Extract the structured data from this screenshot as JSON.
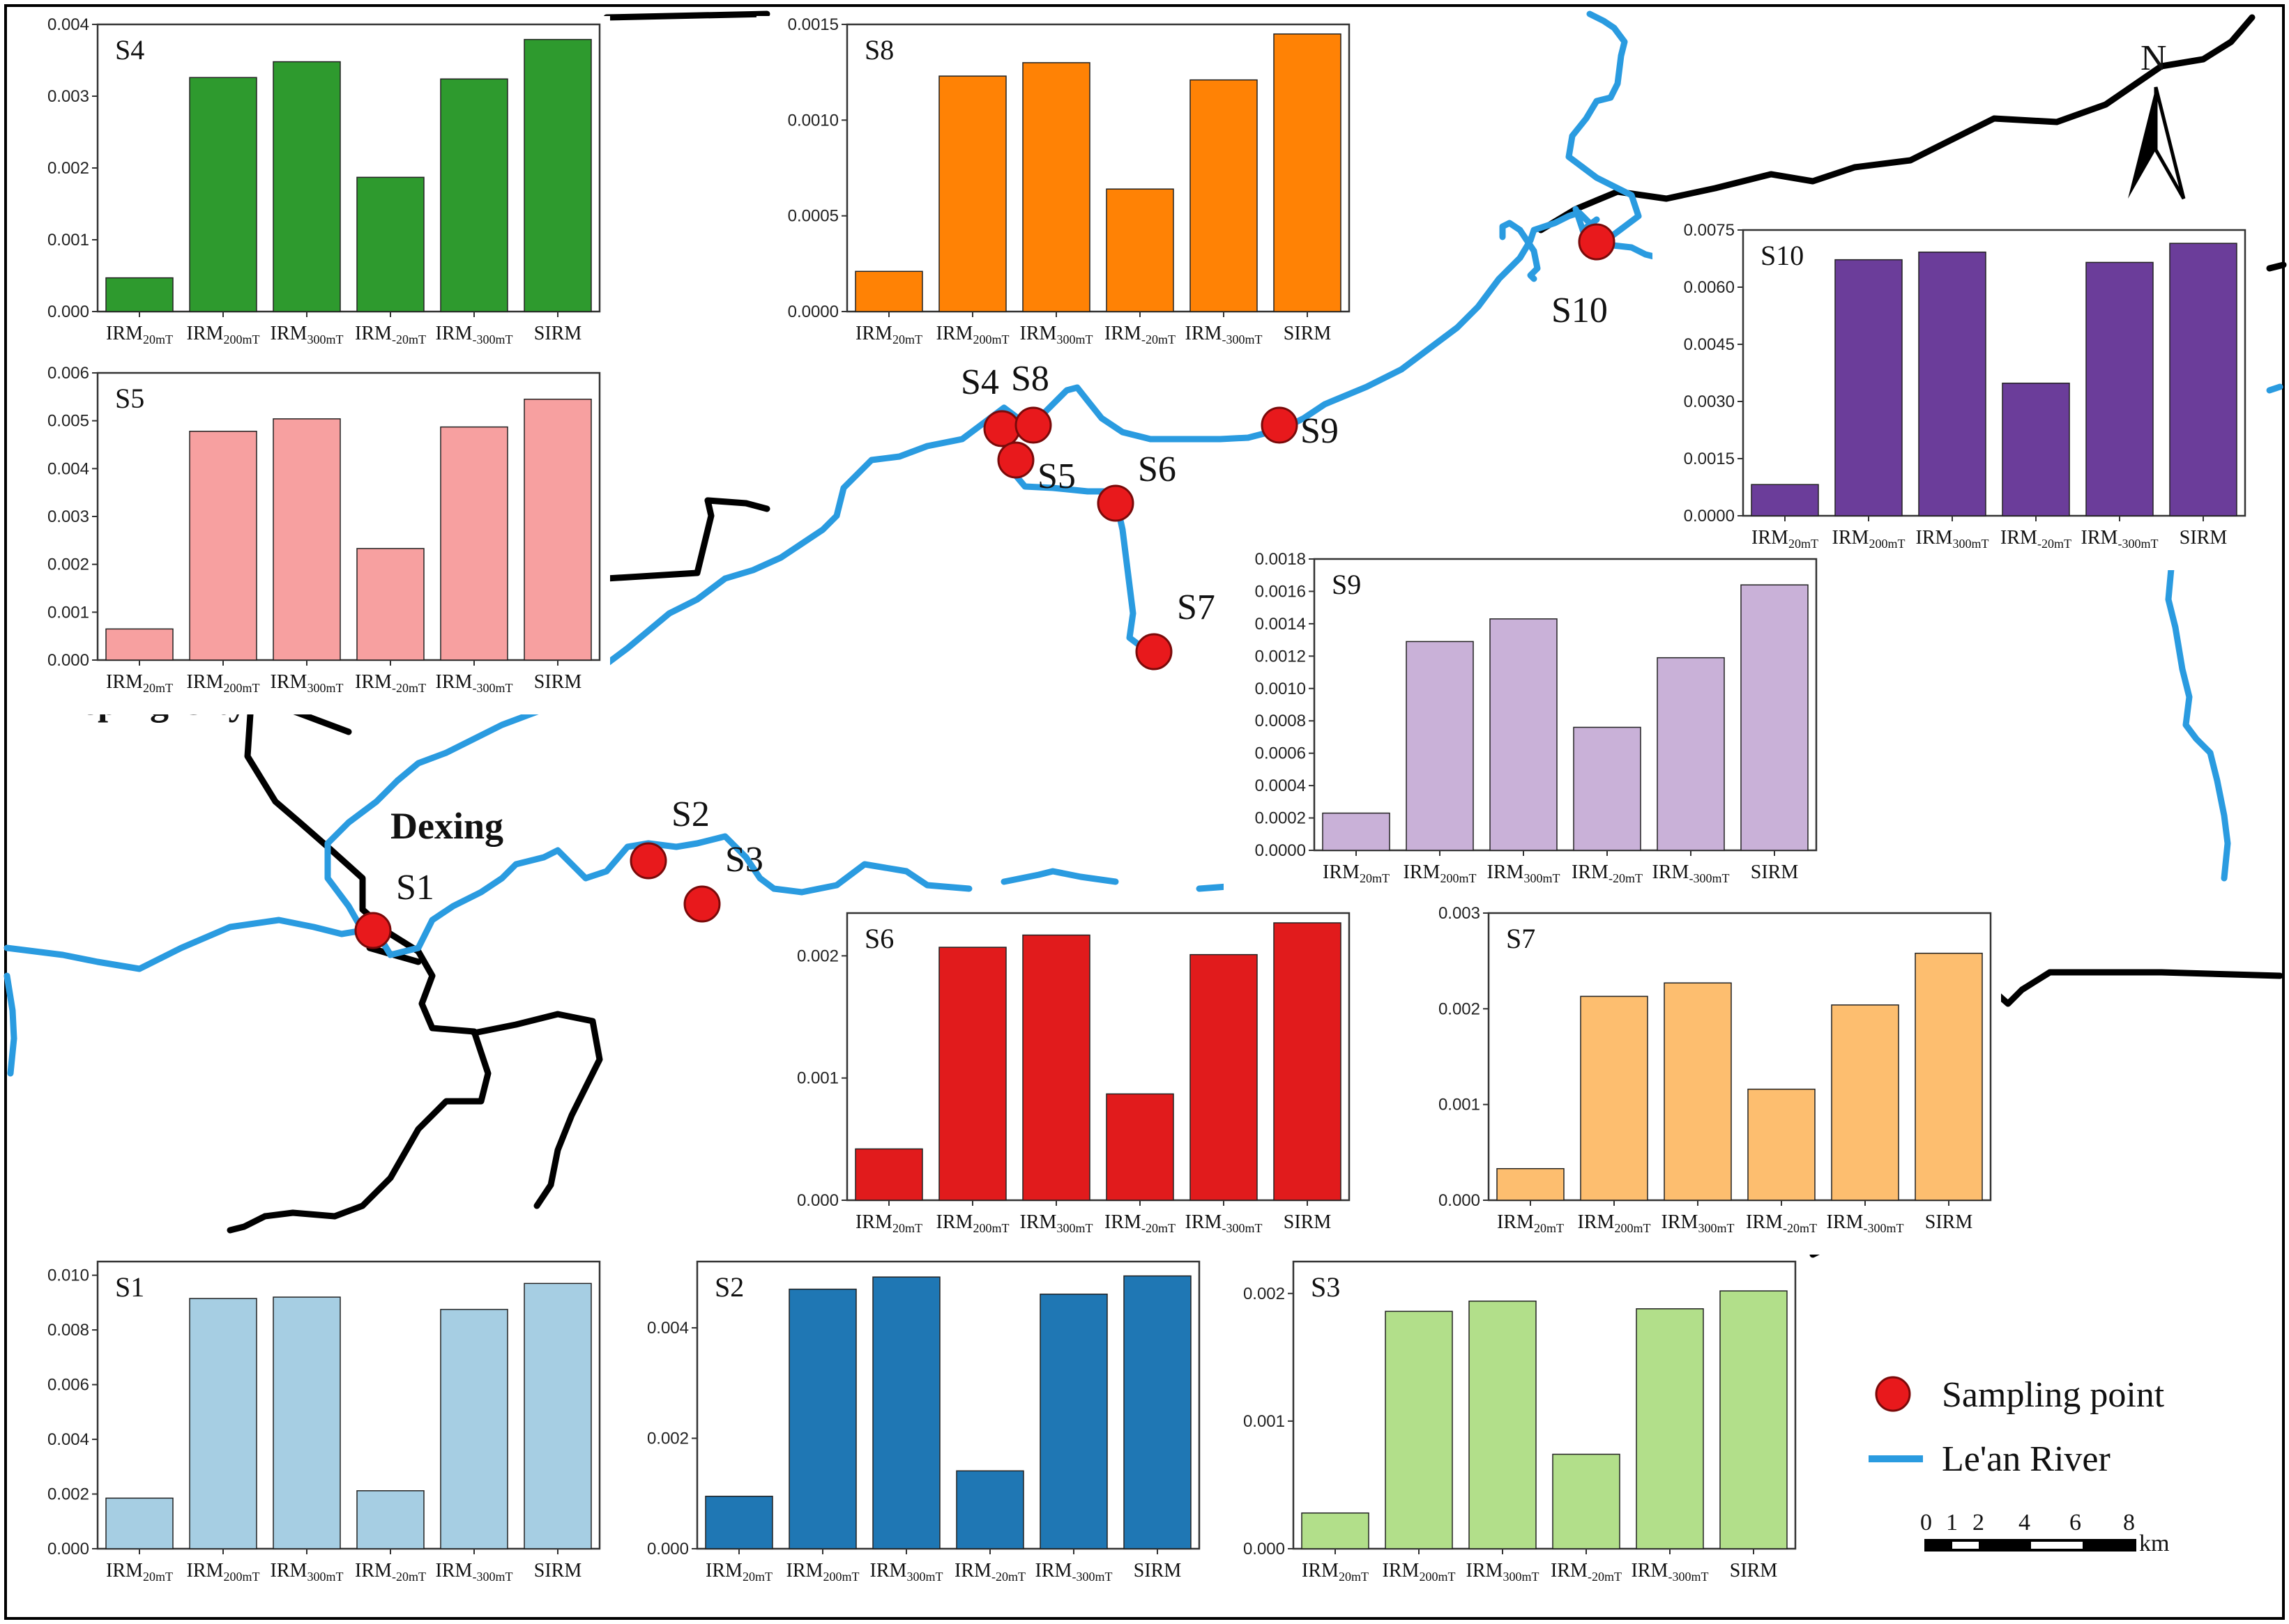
{
  "map": {
    "city_dexing": "Dexing",
    "city_leping": "Leping City",
    "north_label": "N",
    "legend": {
      "sampling_point": "Sampling point",
      "river": "Le'an River"
    },
    "scale": {
      "ticks": [
        "0",
        "1",
        "2",
        "4",
        "6",
        "8"
      ],
      "unit": "km"
    },
    "sample_labels": [
      "S1",
      "S2",
      "S3",
      "S4",
      "S8",
      "S5",
      "S6",
      "S7",
      "S9",
      "S10"
    ],
    "colors": {
      "river": "#2a9be0",
      "boundary": "#000000",
      "point": "#e8191c"
    }
  },
  "chart_data": [
    {
      "type": "bar",
      "title": "S4",
      "color": "#2e9a2e",
      "categories": [
        [
          "IRM",
          "20mT"
        ],
        [
          "IRM",
          "200mT"
        ],
        [
          "IRM",
          "300mT"
        ],
        [
          "IRM",
          "-20mT"
        ],
        [
          "IRM",
          "-300mT"
        ],
        [
          "SIRM",
          ""
        ]
      ],
      "values": [
        0.00047,
        0.00326,
        0.00348,
        0.00187,
        0.00324,
        0.00379
      ],
      "ylim": [
        0,
        0.004
      ],
      "yticks": [
        "0.000",
        "0.001",
        "0.002",
        "0.003",
        "0.004"
      ],
      "ytick_values": [
        0,
        0.001,
        0.002,
        0.003,
        0.004
      ]
    },
    {
      "type": "bar",
      "title": "S8",
      "color": "#ff8205",
      "categories": [
        [
          "IRM",
          "20mT"
        ],
        [
          "IRM",
          "200mT"
        ],
        [
          "IRM",
          "300mT"
        ],
        [
          "IRM",
          "-20mT"
        ],
        [
          "IRM",
          "-300mT"
        ],
        [
          "SIRM",
          ""
        ]
      ],
      "values": [
        0.00021,
        0.00123,
        0.0013,
        0.00064,
        0.00121,
        0.00145
      ],
      "ylim": [
        0,
        0.0015
      ],
      "yticks": [
        "0.0000",
        "0.0005",
        "0.0010",
        "0.0015"
      ],
      "ytick_values": [
        0,
        0.0005,
        0.001,
        0.0015
      ]
    },
    {
      "type": "bar",
      "title": "S5",
      "color": "#f7a0a0",
      "categories": [
        [
          "IRM",
          "20mT"
        ],
        [
          "IRM",
          "200mT"
        ],
        [
          "IRM",
          "300mT"
        ],
        [
          "IRM",
          "-20mT"
        ],
        [
          "IRM",
          "-300mT"
        ],
        [
          "SIRM",
          ""
        ]
      ],
      "values": [
        0.00065,
        0.00478,
        0.00504,
        0.00233,
        0.00487,
        0.00545
      ],
      "ylim": [
        0,
        0.006
      ],
      "yticks": [
        "0.000",
        "0.001",
        "0.002",
        "0.003",
        "0.004",
        "0.005",
        "0.006"
      ],
      "ytick_values": [
        0,
        0.001,
        0.002,
        0.003,
        0.004,
        0.005,
        0.006
      ]
    },
    {
      "type": "bar",
      "title": "S10",
      "color": "#6b3d9a",
      "categories": [
        [
          "IRM",
          "20mT"
        ],
        [
          "IRM",
          "200mT"
        ],
        [
          "IRM",
          "300mT"
        ],
        [
          "IRM",
          "-20mT"
        ],
        [
          "IRM",
          "-300mT"
        ],
        [
          "SIRM",
          ""
        ]
      ],
      "values": [
        0.00082,
        0.00672,
        0.00692,
        0.00348,
        0.00665,
        0.00715
      ],
      "ylim": [
        0,
        0.0075
      ],
      "yticks": [
        "0.0000",
        "0.0015",
        "0.0030",
        "0.0045",
        "0.0060",
        "0.0075"
      ],
      "ytick_values": [
        0,
        0.0015,
        0.003,
        0.0045,
        0.006,
        0.0075
      ]
    },
    {
      "type": "bar",
      "title": "S9",
      "color": "#c9b1d8",
      "categories": [
        [
          "IRM",
          "20mT"
        ],
        [
          "IRM",
          "200mT"
        ],
        [
          "IRM",
          "300mT"
        ],
        [
          "IRM",
          "-20mT"
        ],
        [
          "IRM",
          "-300mT"
        ],
        [
          "SIRM",
          ""
        ]
      ],
      "values": [
        0.00023,
        0.00129,
        0.00143,
        0.00076,
        0.00119,
        0.00164
      ],
      "ylim": [
        0,
        0.0018
      ],
      "yticks": [
        "0.0000",
        "0.0002",
        "0.0004",
        "0.0006",
        "0.0008",
        "0.0010",
        "0.0012",
        "0.0014",
        "0.0016",
        "0.0018"
      ],
      "ytick_values": [
        0,
        0.0002,
        0.0004,
        0.0006,
        0.0008,
        0.001,
        0.0012,
        0.0014,
        0.0016,
        0.0018
      ]
    },
    {
      "type": "bar",
      "title": "S6",
      "color": "#e11b1c",
      "categories": [
        [
          "IRM",
          "20mT"
        ],
        [
          "IRM",
          "200mT"
        ],
        [
          "IRM",
          "300mT"
        ],
        [
          "IRM",
          "-20mT"
        ],
        [
          "IRM",
          "-300mT"
        ],
        [
          "SIRM",
          ""
        ]
      ],
      "values": [
        0.00042,
        0.00207,
        0.00217,
        0.00087,
        0.00201,
        0.00227
      ],
      "ylim": [
        0,
        0.00235
      ],
      "yticks": [
        "0.000",
        "0.001",
        "0.002"
      ],
      "ytick_values": [
        0,
        0.001,
        0.002
      ]
    },
    {
      "type": "bar",
      "title": "S7",
      "color": "#fdbe6f",
      "categories": [
        [
          "IRM",
          "20mT"
        ],
        [
          "IRM",
          "200mT"
        ],
        [
          "IRM",
          "300mT"
        ],
        [
          "IRM",
          "-20mT"
        ],
        [
          "IRM",
          "-300mT"
        ],
        [
          "SIRM",
          ""
        ]
      ],
      "values": [
        0.00033,
        0.00213,
        0.00227,
        0.00116,
        0.00204,
        0.00258
      ],
      "ylim": [
        0,
        0.003
      ],
      "yticks": [
        "0.000",
        "0.001",
        "0.002",
        "0.003"
      ],
      "ytick_values": [
        0,
        0.001,
        0.002,
        0.003
      ]
    },
    {
      "type": "bar",
      "title": "S1",
      "color": "#a6cee3",
      "categories": [
        [
          "IRM",
          "20mT"
        ],
        [
          "IRM",
          "200mT"
        ],
        [
          "IRM",
          "300mT"
        ],
        [
          "IRM",
          "-20mT"
        ],
        [
          "IRM",
          "-300mT"
        ],
        [
          "SIRM",
          ""
        ]
      ],
      "values": [
        0.00185,
        0.00915,
        0.0092,
        0.00212,
        0.00875,
        0.0097
      ],
      "ylim": [
        0,
        0.0105
      ],
      "yticks": [
        "0.000",
        "0.002",
        "0.004",
        "0.006",
        "0.008",
        "0.010"
      ],
      "ytick_values": [
        0,
        0.002,
        0.004,
        0.006,
        0.008,
        0.01
      ]
    },
    {
      "type": "bar",
      "title": "S2",
      "color": "#1f77b4",
      "categories": [
        [
          "IRM",
          "20mT"
        ],
        [
          "IRM",
          "200mT"
        ],
        [
          "IRM",
          "300mT"
        ],
        [
          "IRM",
          "-20mT"
        ],
        [
          "IRM",
          "-300mT"
        ],
        [
          "SIRM",
          ""
        ]
      ],
      "values": [
        0.00095,
        0.0047,
        0.00492,
        0.00141,
        0.00461,
        0.00494
      ],
      "ylim": [
        0,
        0.0052
      ],
      "yticks": [
        "0.000",
        "0.002",
        "0.004"
      ],
      "ytick_values": [
        0,
        0.002,
        0.004
      ]
    },
    {
      "type": "bar",
      "title": "S3",
      "color": "#b2df8a",
      "categories": [
        [
          "IRM",
          "20mT"
        ],
        [
          "IRM",
          "200mT"
        ],
        [
          "IRM",
          "300mT"
        ],
        [
          "IRM",
          "-20mT"
        ],
        [
          "IRM",
          "-300mT"
        ],
        [
          "SIRM",
          ""
        ]
      ],
      "values": [
        0.00028,
        0.00186,
        0.00194,
        0.00074,
        0.00188,
        0.00202
      ],
      "ylim": [
        0,
        0.00225
      ],
      "yticks": [
        "0.000",
        "0.001",
        "0.002"
      ],
      "ytick_values": [
        0,
        0.001,
        0.002
      ]
    }
  ]
}
